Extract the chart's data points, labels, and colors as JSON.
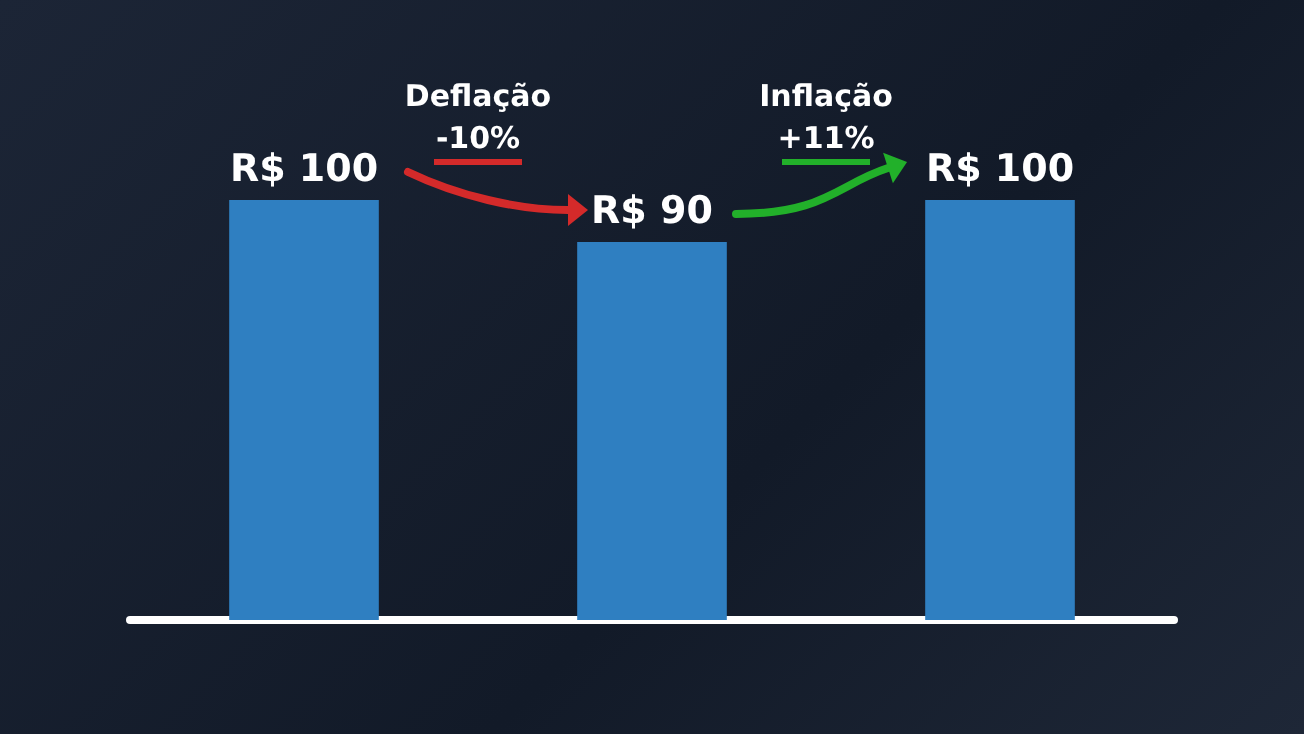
{
  "chart_data": {
    "type": "bar",
    "categories": [
      null,
      null,
      null
    ],
    "values": [
      100,
      90,
      100
    ],
    "value_labels": [
      "R$ 100",
      "R$ 90",
      "R$ 100"
    ],
    "color": "#2f7fc1",
    "annotations": [
      "Deflação",
      "-10%",
      "Inflação",
      "+11%"
    ]
  }
}
